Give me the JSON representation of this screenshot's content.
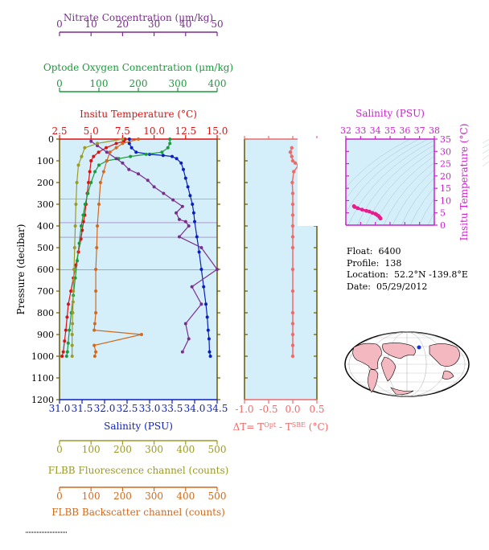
{
  "colors": {
    "nitrate": "#7b2d8e",
    "oxygen": "#1a9b3c",
    "temperature": "#dd1111",
    "salinity": "#0b1fbf",
    "fluorescence": "#9a9a2a",
    "backscatter": "#d2691e",
    "delta": "#f06a6a",
    "ts_axis": "#cc22cc",
    "panel_bg": "#d4effa",
    "pressure_axis": "#6b5a00"
  },
  "axes": {
    "nitrate": {
      "label": "Nitrate Concentration (μm/kg)",
      "ticks": [
        "0",
        "10",
        "20",
        "30",
        "40",
        "50"
      ]
    },
    "oxygen": {
      "label": "Optode Oxygen Concentration (μm/kg)",
      "ticks": [
        "0",
        "100",
        "200",
        "300",
        "400"
      ]
    },
    "temperature": {
      "label": "Insitu Temperature (°C)",
      "ticks": [
        "2.5",
        "5.0",
        "7.5",
        "10.0",
        "12.5",
        "15.0"
      ]
    },
    "salinity": {
      "label": "Salinity (PSU)",
      "ticks": [
        "31.0",
        "31.5",
        "32.0",
        "32.5",
        "33.0",
        "33.5",
        "34.0",
        "34.5"
      ]
    },
    "pressure": {
      "label": "Pressure (decibar)",
      "ticks": [
        "0",
        "100",
        "200",
        "300",
        "400",
        "500",
        "600",
        "700",
        "800",
        "900",
        "1000",
        "1100",
        "1200"
      ]
    },
    "fluorescence": {
      "label": "FLBB Fluorescence channel (counts)",
      "ticks": [
        "0",
        "100",
        "200",
        "300",
        "400",
        "500"
      ]
    },
    "backscatter": {
      "label": "FLBB Backscatter channel (counts)",
      "ticks": [
        "0",
        "100",
        "200",
        "300",
        "400",
        "500"
      ]
    },
    "delta": {
      "label_prefix": "ΔT= T",
      "label_sup1": "Opt",
      "label_mid": " - T",
      "label_sup2": "SBE",
      "label_suffix": " (°C)",
      "ticks": [
        "-1.0",
        "-0.5",
        "0.0",
        "0.5"
      ]
    },
    "ts_salinity": {
      "label": "Salinity (PSU)",
      "ticks": [
        "32",
        "33",
        "34",
        "35",
        "36",
        "37",
        "38"
      ]
    },
    "ts_temperature": {
      "label": "Insitu Temperature (°C)",
      "ticks": [
        "0",
        "5",
        "10",
        "15",
        "20",
        "25",
        "30",
        "35"
      ]
    }
  },
  "info": {
    "float_label": "Float:",
    "float": "6400",
    "profile_label": "Profile:",
    "profile": "138",
    "location_label": "Location:",
    "location": "52.2°N  -139.8°E",
    "date_label": "Date:",
    "date": "05/29/2012"
  },
  "chart_data": [
    {
      "type": "line",
      "title": "",
      "ylabel": "Pressure (decibar)",
      "ylim": [
        1200,
        0
      ],
      "series": [
        {
          "name": "Salinity (PSU)",
          "xlim": [
            31.0,
            34.5
          ],
          "x": [
            32.55,
            32.55,
            32.6,
            32.7,
            33.0,
            33.3,
            33.5,
            33.6,
            33.7,
            33.75,
            33.8,
            33.85,
            33.9,
            33.95,
            33.98,
            34.0,
            34.05,
            34.1,
            34.15,
            34.2,
            34.25,
            34.28,
            34.3,
            34.32,
            34.33,
            34.35
          ],
          "y": [
            0,
            20,
            40,
            60,
            70,
            75,
            80,
            90,
            110,
            140,
            180,
            220,
            260,
            300,
            340,
            380,
            450,
            520,
            600,
            680,
            760,
            820,
            880,
            920,
            980,
            1000
          ]
        },
        {
          "name": "Insitu Temperature (°C)",
          "xlim": [
            2.5,
            15.0
          ],
          "x": [
            7.7,
            7.6,
            7.0,
            6.2,
            5.6,
            5.2,
            5.0,
            4.9,
            4.8,
            4.7,
            4.6,
            4.5,
            4.4,
            4.3,
            4.2,
            4.0,
            3.8,
            3.6,
            3.4,
            3.2,
            3.1,
            3.0,
            2.9,
            2.8,
            2.7
          ],
          "y": [
            0,
            10,
            20,
            40,
            60,
            80,
            100,
            150,
            200,
            250,
            300,
            350,
            380,
            420,
            460,
            520,
            580,
            640,
            700,
            760,
            820,
            880,
            930,
            980,
            1000
          ]
        },
        {
          "name": "Optode Oxygen Concentration (μm/kg)",
          "xlim": [
            0,
            400
          ],
          "x": [
            280,
            280,
            275,
            260,
            220,
            180,
            150,
            120,
            100,
            90,
            80,
            72,
            65,
            60,
            55,
            50,
            45,
            40,
            35,
            30,
            25,
            22,
            20,
            18
          ],
          "y": [
            0,
            20,
            40,
            60,
            70,
            80,
            90,
            100,
            120,
            150,
            200,
            250,
            300,
            350,
            400,
            480,
            560,
            640,
            720,
            800,
            880,
            940,
            980,
            1000
          ]
        },
        {
          "name": "Nitrate Concentration (μm/kg)",
          "xlim": [
            0,
            50
          ],
          "x": [
            10,
            12,
            15,
            18,
            20,
            22,
            25,
            28,
            30,
            33,
            36,
            39,
            37,
            38,
            40,
            41,
            38,
            45,
            50,
            42,
            45,
            40,
            41,
            39
          ],
          "y": [
            10,
            30,
            60,
            90,
            110,
            140,
            160,
            190,
            220,
            250,
            280,
            310,
            340,
            370,
            380,
            400,
            450,
            500,
            600,
            680,
            760,
            850,
            920,
            980
          ]
        },
        {
          "name": "FLBB Fluorescence channel (counts)",
          "xlim": [
            0,
            500
          ],
          "x": [
            200,
            120,
            80,
            70,
            60,
            55,
            52,
            50,
            48,
            46,
            45,
            44,
            43,
            42,
            41,
            40,
            40,
            40
          ],
          "y": [
            0,
            20,
            40,
            80,
            120,
            200,
            300,
            400,
            500,
            600,
            650,
            700,
            750,
            800,
            850,
            900,
            950,
            1000
          ]
        },
        {
          "name": "FLBB Backscatter channel (counts)",
          "xlim": [
            0,
            500
          ],
          "x": [
            250,
            200,
            180,
            160,
            150,
            140,
            130,
            125,
            120,
            118,
            115,
            115,
            115,
            112,
            110,
            260,
            110,
            115,
            112
          ],
          "y": [
            0,
            20,
            40,
            60,
            100,
            150,
            200,
            300,
            400,
            500,
            600,
            700,
            800,
            850,
            880,
            900,
            950,
            980,
            1000
          ]
        }
      ]
    },
    {
      "type": "line",
      "xlabel": "ΔT= T^Opt - T^SBE (°C)",
      "xlim": [
        -1.0,
        0.5
      ],
      "ylim": [
        1200,
        0
      ],
      "series": [
        {
          "x": [
            -0.02,
            -0.05,
            -0.02,
            0.0,
            0.05,
            0.12,
            0.02,
            -0.01,
            0.0,
            0.0,
            0.0,
            0.0,
            0.0,
            0.0,
            0.0,
            0.0,
            0.0,
            0.0,
            0.0,
            0.0,
            0.0
          ],
          "y": [
            40,
            60,
            80,
            100,
            110,
            120,
            150,
            200,
            250,
            300,
            350,
            400,
            450,
            500,
            600,
            700,
            800,
            850,
            900,
            950,
            1000
          ]
        }
      ]
    },
    {
      "type": "scatter",
      "xlabel": "Salinity (PSU)",
      "ylabel": "Insitu Temperature (°C)",
      "xlim": [
        32,
        38
      ],
      "ylim": [
        0,
        35
      ],
      "series": [
        {
          "x": [
            32.55,
            32.6,
            32.8,
            33.1,
            33.4,
            33.6,
            33.8,
            34.0,
            34.1,
            34.2,
            34.3,
            34.35
          ],
          "y": [
            7.7,
            7.4,
            6.9,
            6.3,
            5.8,
            5.5,
            5.0,
            4.6,
            4.2,
            3.8,
            3.2,
            2.7
          ]
        }
      ]
    }
  ],
  "map": {
    "marker_label": "Float location"
  }
}
